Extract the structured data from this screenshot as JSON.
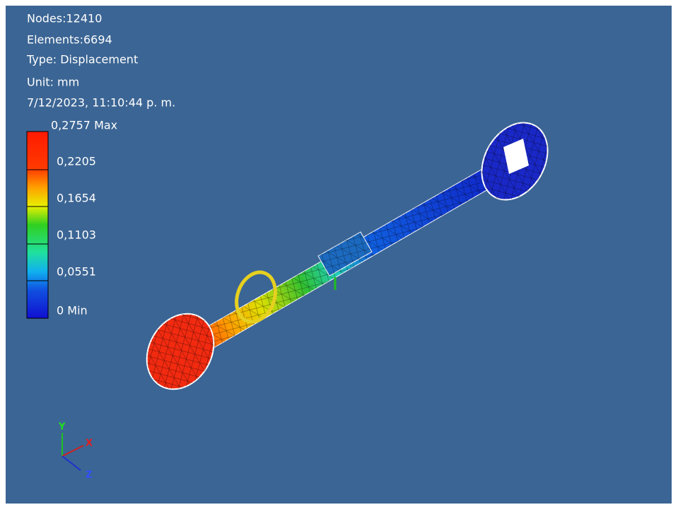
{
  "info": {
    "nodes": "Nodes:12410",
    "elements": "Elements:6694",
    "type": "Type: Displacement",
    "unit": "Unit: mm",
    "date": "7/12/2023, 11:10:44 p. m."
  },
  "legend": {
    "labels": [
      "0,2757 Max",
      "0,2205",
      "0,1654",
      "0,1103",
      "0,0551",
      "0 Min"
    ]
  },
  "triad": {
    "x": "X",
    "y": "Y",
    "z": "Z"
  }
}
